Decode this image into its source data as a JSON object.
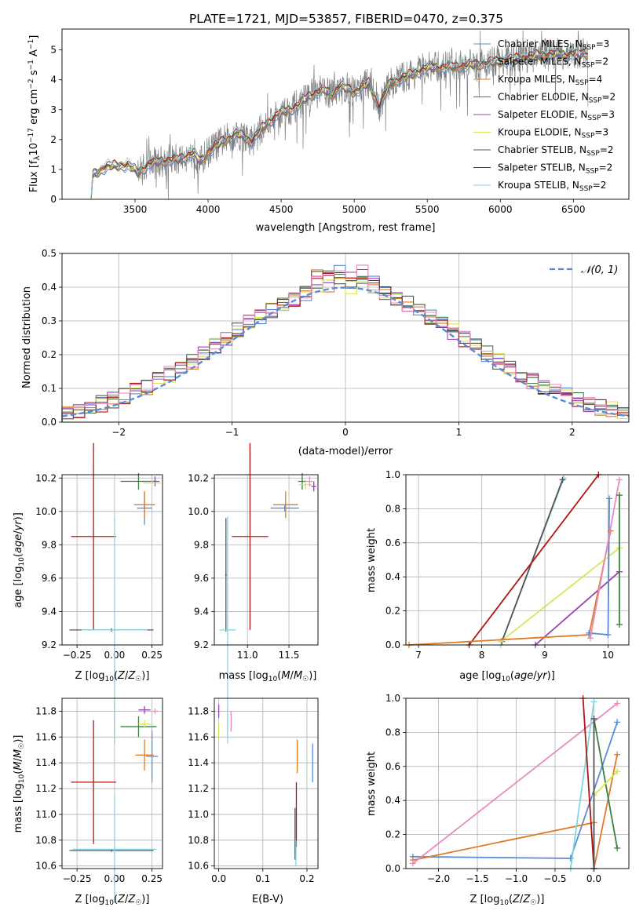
{
  "figure": {
    "suptitle": "PLATE=1721, MJD=53857, FIBERID=0470, z=0.375"
  },
  "colors": {
    "Chabrier MILES": "#5b8ad8",
    "Salpeter MILES": "#7a7a7a",
    "Kroupa MILES": "#e07b22",
    "Chabrier ELODIE": "#3f7f3f",
    "Salpeter ELODIE": "#9b3fb5",
    "Kroupa ELODIE": "#d4e65a",
    "Chabrier STELIB": "#555555",
    "Salpeter STELIB": "#b01515",
    "Kroupa STELIB": "#7fd6e0",
    "pink": "#e88bc0",
    "normal": "#5b8ad8",
    "data": "#808080"
  },
  "chart_data": [
    {
      "type": "line",
      "title": "PLATE=1721, MJD=53857, FIBERID=0470, z=0.375",
      "xlabel": "wavelength [Angstrom, rest frame]",
      "ylabel": "Flux [f_λ 10^-17 erg cm^-2 s^-1 A^-1]",
      "xlim": [
        3000,
        6880
      ],
      "ylim": [
        0,
        5.7
      ],
      "xticks": [
        3500,
        4000,
        4500,
        5000,
        5500,
        6000,
        6500
      ],
      "yticks": [
        0,
        1,
        2,
        3,
        4,
        5
      ],
      "legend_position": "top-right",
      "legend": [
        {
          "model": "Chabrier MILES",
          "imf": "Chabrier",
          "lib": "MILES",
          "nssp": "3"
        },
        {
          "model": "Salpeter MILES",
          "imf": "Salpeter",
          "lib": "MILES",
          "nssp": "2"
        },
        {
          "model": "Kroupa MILES",
          "imf": "Kroupa",
          "lib": "MILES",
          "nssp": "4"
        },
        {
          "model": "Chabrier ELODIE",
          "imf": "Chabrier",
          "lib": "ELODIE",
          "nssp": "2"
        },
        {
          "model": "Salpeter ELODIE",
          "imf": "Salpeter",
          "lib": "ELODIE",
          "nssp": "3"
        },
        {
          "model": "Kroupa ELODIE",
          "imf": "Kroupa",
          "lib": "ELODIE",
          "nssp": "3"
        },
        {
          "model": "Chabrier STELIB",
          "imf": "Chabrier",
          "lib": "STELIB",
          "nssp": "2"
        },
        {
          "model": "Salpeter STELIB",
          "imf": "Salpeter",
          "lib": "STELIB",
          "nssp": "2"
        },
        {
          "model": "Kroupa STELIB",
          "imf": "Kroupa",
          "lib": "STELIB",
          "nssp": "2"
        }
      ],
      "continuum": [
        [
          3200,
          0
        ],
        [
          3210,
          0.8
        ],
        [
          3300,
          1.1
        ],
        [
          3450,
          1.15
        ],
        [
          3520,
          0.9
        ],
        [
          3600,
          1.2
        ],
        [
          3700,
          1.3
        ],
        [
          3800,
          1.35
        ],
        [
          3900,
          1.55
        ],
        [
          3950,
          1.25
        ],
        [
          4000,
          1.6
        ],
        [
          4100,
          1.95
        ],
        [
          4200,
          2.2
        ],
        [
          4300,
          1.95
        ],
        [
          4400,
          2.55
        ],
        [
          4500,
          2.9
        ],
        [
          4600,
          3.1
        ],
        [
          4700,
          3.5
        ],
        [
          4800,
          3.65
        ],
        [
          4850,
          3.5
        ],
        [
          4900,
          3.8
        ],
        [
          5000,
          3.6
        ],
        [
          5100,
          3.9
        ],
        [
          5170,
          3.1
        ],
        [
          5250,
          3.9
        ],
        [
          5400,
          4.2
        ],
        [
          5500,
          4.4
        ],
        [
          5700,
          4.45
        ],
        [
          5900,
          4.55
        ],
        [
          6100,
          4.7
        ],
        [
          6300,
          4.85
        ],
        [
          6500,
          4.85
        ],
        [
          6600,
          4.9
        ]
      ]
    },
    {
      "type": "area",
      "xlabel": "(data-model)/error",
      "ylabel": "Normed distribution",
      "xlim": [
        -2.5,
        2.5
      ],
      "ylim": [
        0,
        0.5
      ],
      "xticks": [
        -2,
        -1,
        0,
        1,
        2
      ],
      "yticks": [
        0.0,
        0.1,
        0.2,
        0.3,
        0.4,
        0.5
      ],
      "bin_width": 0.1,
      "legend_position": "top-right",
      "normal_curve": {
        "name": "𝒩(0, 1)",
        "mean": 0,
        "sigma": 1
      }
    },
    {
      "type": "scatter",
      "xlabel": "Z [log10(Z/Z☉)]",
      "ylabel": "age  [log10(age/yr)]",
      "xlim": [
        -0.35,
        0.32
      ],
      "ylim": [
        9.2,
        10.22
      ],
      "xticks": [
        -0.25,
        0.0,
        0.25
      ],
      "yticks": [
        9.2,
        9.4,
        9.6,
        9.8,
        10.0,
        10.2
      ],
      "points": [
        {
          "model": "Chabrier MILES",
          "x": 0.2,
          "y": 10.02,
          "xerr": 0.05,
          "yerr": 0.1
        },
        {
          "model": "Kroupa MILES",
          "x": 0.2,
          "y": 10.04,
          "xerr": 0.07,
          "yerr": 0.08
        },
        {
          "model": "Chabrier ELODIE",
          "x": 0.16,
          "y": 10.18,
          "xerr": 0.12,
          "yerr": 0.05
        },
        {
          "model": "Salpeter ELODIE",
          "x": 0.27,
          "y": 10.18,
          "xerr": 0.03,
          "yerr": 0.03
        },
        {
          "model": "Kroupa ELODIE",
          "x": 0.25,
          "y": 10.17,
          "xerr": 0.06,
          "yerr": 0.02
        },
        {
          "model": "Salpeter STELIB",
          "x": -0.14,
          "y": 9.85,
          "xerr": 0.15,
          "yerr": 0.56
        },
        {
          "model": "Chabrier STELIB",
          "x": -0.02,
          "y": 9.29,
          "xerr": 0.28,
          "yerr": 0.01
        },
        {
          "model": "Kroupa STELIB",
          "x": 0.0,
          "y": 9.29,
          "xerr": 0.22,
          "yerr": 0.68
        }
      ]
    },
    {
      "type": "scatter",
      "xlabel": "mass [log10(M/M☉)]",
      "ylabel": "",
      "xlim": [
        10.6,
        11.85
      ],
      "ylim": [
        9.2,
        10.22
      ],
      "xticks": [
        11.0,
        11.5
      ],
      "yticks": [
        9.2,
        9.4,
        9.6,
        9.8,
        10.0,
        10.2
      ],
      "points": [
        {
          "model": "Chabrier MILES",
          "x": 11.45,
          "y": 10.02,
          "xerr": 0.17,
          "yerr": 0.02
        },
        {
          "model": "Kroupa MILES",
          "x": 11.46,
          "y": 10.04,
          "xerr": 0.15,
          "yerr": 0.08
        },
        {
          "model": "Chabrier ELODIE",
          "x": 11.66,
          "y": 10.18,
          "xerr": 0.05,
          "yerr": 0.05
        },
        {
          "model": "Salpeter ELODIE",
          "x": 11.8,
          "y": 10.15,
          "xerr": 0.03,
          "yerr": 0.03
        },
        {
          "model": "Kroupa ELODIE",
          "x": 11.7,
          "y": 10.16,
          "xerr": 0.08,
          "yerr": 0.03
        },
        {
          "model": "pink",
          "x": 11.75,
          "y": 10.18,
          "xerr": 0.04,
          "yerr": 0.03
        },
        {
          "model": "Salpeter STELIB",
          "x": 11.03,
          "y": 9.85,
          "xerr": 0.22,
          "yerr": 0.56
        },
        {
          "model": "Chabrier STELIB",
          "x": 10.74,
          "y": 9.62,
          "xerr": 0.01,
          "yerr": 0.34
        },
        {
          "model": "Kroupa STELIB",
          "x": 10.76,
          "y": 9.29,
          "xerr": 0.1,
          "yerr": 0.68
        }
      ]
    },
    {
      "type": "line",
      "xlabel": "age  [log10(age/yr)]",
      "ylabel": "mass weight",
      "xlim": [
        6.8,
        10.33
      ],
      "ylim": [
        0,
        1
      ],
      "xticks": [
        7,
        8,
        9,
        10
      ],
      "yticks": [
        0.0,
        0.2,
        0.4,
        0.6,
        0.8,
        1.0
      ],
      "series": [
        {
          "model": "Kroupa STELIB",
          "x": [
            8.3,
            9.3
          ],
          "y": [
            0.0,
            0.98
          ]
        },
        {
          "model": "Chabrier STELIB",
          "x": [
            8.32,
            9.28
          ],
          "y": [
            0.02,
            0.97
          ]
        },
        {
          "model": "Salpeter STELIB",
          "x": [
            7.8,
            9.85
          ],
          "y": [
            0.0,
            1.0
          ]
        },
        {
          "model": "Kroupa ELODIE",
          "x": [
            8.3,
            10.18
          ],
          "y": [
            0.02,
            0.57
          ]
        },
        {
          "model": "Salpeter ELODIE",
          "x": [
            8.85,
            10.18
          ],
          "y": [
            0.0,
            0.43
          ]
        },
        {
          "model": "Kroupa MILES",
          "x": [
            6.85,
            9.7,
            10.04
          ],
          "y": [
            0.0,
            0.06,
            0.67
          ]
        },
        {
          "model": "Chabrier MILES",
          "x": [
            9.7,
            10.0,
            10.02
          ],
          "y": [
            0.07,
            0.06,
            0.86
          ]
        },
        {
          "model": "pink",
          "x": [
            9.72,
            10.18
          ],
          "y": [
            0.04,
            0.97
          ]
        },
        {
          "model": "Chabrier ELODIE",
          "x": [
            10.18,
            10.18
          ],
          "y": [
            0.12,
            0.88
          ]
        }
      ]
    },
    {
      "type": "scatter",
      "xlabel": "Z [log10(Z/Z☉)]",
      "ylabel": "mass [log10(M/M☉)]",
      "xlim": [
        -0.35,
        0.32
      ],
      "ylim": [
        10.58,
        11.9
      ],
      "xticks": [
        -0.25,
        0.0,
        0.25
      ],
      "yticks": [
        10.6,
        10.8,
        11.0,
        11.2,
        11.4,
        11.6,
        11.8
      ],
      "points": [
        {
          "model": "Chabrier MILES",
          "x": 0.25,
          "y": 11.45,
          "xerr": 0.04,
          "yerr": 0.2
        },
        {
          "model": "Kroupa MILES",
          "x": 0.2,
          "y": 11.46,
          "xerr": 0.06,
          "yerr": 0.12
        },
        {
          "model": "Chabrier ELODIE",
          "x": 0.16,
          "y": 11.68,
          "xerr": 0.12,
          "yerr": 0.08
        },
        {
          "model": "Salpeter ELODIE",
          "x": 0.2,
          "y": 11.81,
          "xerr": 0.04,
          "yerr": 0.03
        },
        {
          "model": "Kroupa ELODIE",
          "x": 0.2,
          "y": 11.7,
          "xerr": 0.04,
          "yerr": 0.03
        },
        {
          "model": "pink",
          "x": 0.27,
          "y": 11.8,
          "xerr": 0.02,
          "yerr": 0.02
        },
        {
          "model": "Salpeter STELIB",
          "x": -0.14,
          "y": 11.25,
          "xerr": 0.15,
          "yerr": 0.48
        },
        {
          "model": "Chabrier STELIB",
          "x": -0.02,
          "y": 10.72,
          "xerr": 0.28,
          "yerr": 0.01
        },
        {
          "model": "Kroupa STELIB",
          "x": 0.0,
          "y": 10.73,
          "xerr": 0.28,
          "yerr": 0.42
        }
      ]
    },
    {
      "type": "scatter",
      "xlabel": "E(B-V)",
      "ylabel": "",
      "xlim": [
        -0.01,
        0.225
      ],
      "ylim": [
        10.58,
        11.9
      ],
      "xticks": [
        0.0,
        0.1,
        0.2
      ],
      "yticks": [
        10.6,
        10.8,
        11.0,
        11.2,
        11.4,
        11.6,
        11.8
      ],
      "points": [
        {
          "model": "Chabrier MILES",
          "x": 0.213,
          "y": 11.4,
          "xerr": 0,
          "yerr": 0.15
        },
        {
          "model": "Kroupa MILES",
          "x": 0.178,
          "y": 11.45,
          "xerr": 0,
          "yerr": 0.13
        },
        {
          "model": "Salpeter STELIB",
          "x": 0.176,
          "y": 11.0,
          "xerr": 0,
          "yerr": 0.25
        },
        {
          "model": "Chabrier STELIB",
          "x": 0.173,
          "y": 10.85,
          "xerr": 0,
          "yerr": 0.2
        },
        {
          "model": "Kroupa STELIB",
          "x": 0.175,
          "y": 10.7,
          "xerr": 0,
          "yerr": 0.1
        },
        {
          "model": "Salpeter ELODIE",
          "x": 0.0,
          "y": 11.8,
          "xerr": 0,
          "yerr": 0.05
        },
        {
          "model": "Kroupa ELODIE",
          "x": 0.0,
          "y": 11.66,
          "xerr": 0,
          "yerr": 0.06
        },
        {
          "model": "pink",
          "x": 0.028,
          "y": 11.72,
          "xerr": 0,
          "yerr": 0.08
        }
      ]
    },
    {
      "type": "line",
      "xlabel": "Z [log10(Z/Z☉)]",
      "ylabel": "mass weight",
      "xlim": [
        -2.42,
        0.45
      ],
      "ylim": [
        0,
        1
      ],
      "xticks": [
        -2.0,
        -1.5,
        -1.0,
        -0.5,
        0.0
      ],
      "yticks": [
        0.0,
        0.2,
        0.4,
        0.6,
        0.8,
        1.0
      ],
      "series": [
        {
          "model": "Chabrier MILES",
          "x": [
            -2.33,
            -0.3,
            0.3
          ],
          "y": [
            0.07,
            0.06,
            0.86
          ]
        },
        {
          "model": "Kroupa MILES",
          "x": [
            -2.33,
            0.0,
            0.0,
            0.3
          ],
          "y": [
            0.05,
            0.27,
            0.0,
            0.67
          ]
        },
        {
          "model": "pink",
          "x": [
            -2.33,
            0.3
          ],
          "y": [
            0.03,
            0.97
          ]
        },
        {
          "model": "Kroupa STELIB",
          "x": [
            -0.3,
            0.0
          ],
          "y": [
            0.0,
            0.98
          ]
        },
        {
          "model": "Salpeter STELIB",
          "x": [
            -0.14,
            0.0
          ],
          "y": [
            1.0,
            0.0
          ]
        },
        {
          "model": "Chabrier ELODIE",
          "x": [
            0.0,
            0.3
          ],
          "y": [
            0.88,
            0.12
          ]
        },
        {
          "model": "Kroupa ELODIE",
          "x": [
            0.0,
            0.3
          ],
          "y": [
            0.43,
            0.57
          ]
        },
        {
          "model": "Chabrier STELIB",
          "x": [
            0.0,
            0.0
          ],
          "y": [
            0.0,
            0.88
          ]
        }
      ]
    }
  ]
}
